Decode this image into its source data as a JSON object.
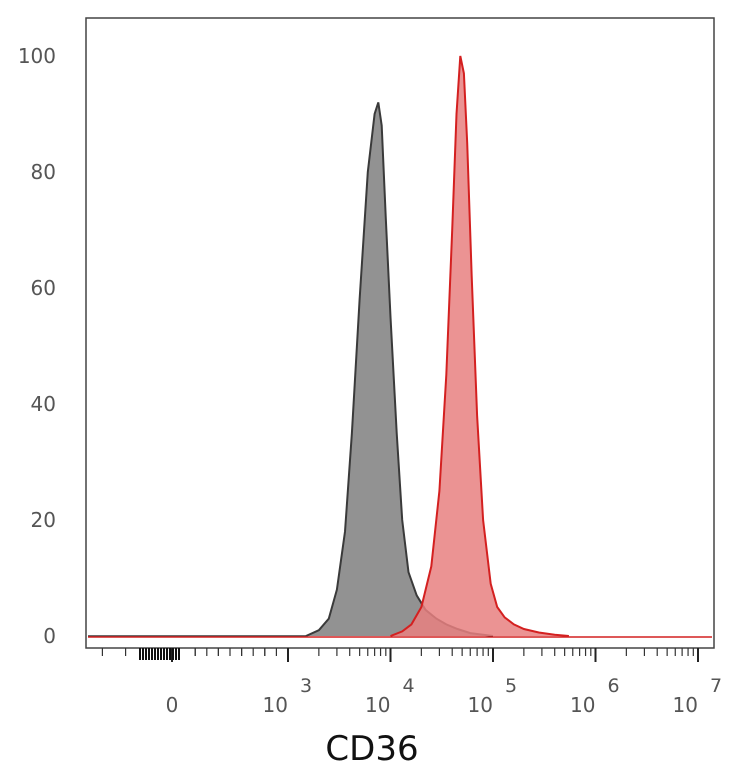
{
  "chart_data": {
    "type": "area",
    "title": "",
    "xlabel": "CD36",
    "ylabel": "",
    "ylim": [
      0,
      100
    ],
    "y_ticks": [
      "0",
      "20",
      "40",
      "60",
      "80",
      "100"
    ],
    "x_scale": "biexponential",
    "x_ticks": [
      {
        "base": "0",
        "exp": ""
      },
      {
        "base": "10",
        "exp": "3"
      },
      {
        "base": "10",
        "exp": "4"
      },
      {
        "base": "10",
        "exp": "5"
      },
      {
        "base": "10",
        "exp": "6"
      },
      {
        "base": "10",
        "exp": "7"
      }
    ],
    "grid": false,
    "legend": "none",
    "series": [
      {
        "color": "#3a3a3a",
        "fill": "#7f7f7f",
        "x": [
          1500,
          2000,
          2500,
          3000,
          3600,
          4200,
          5000,
          6000,
          7000,
          7600,
          8200,
          9000,
          10000,
          11500,
          13000,
          15000,
          18000,
          22000,
          28000,
          35000,
          45000,
          60000,
          80000,
          100000
        ],
        "y": [
          0,
          1,
          3,
          8,
          18,
          35,
          58,
          80,
          90,
          92,
          88,
          72,
          55,
          35,
          20,
          11,
          7,
          4.5,
          3,
          2,
          1.2,
          0.5,
          0.2,
          0
        ]
      },
      {
        "color": "#d42020",
        "fill": "#e88080",
        "x": [
          10000,
          13000,
          16000,
          20000,
          25000,
          30000,
          35000,
          40000,
          44000,
          48000,
          52000,
          56000,
          62000,
          70000,
          80000,
          95000,
          110000,
          130000,
          160000,
          200000,
          280000,
          400000,
          550000
        ],
        "y": [
          0,
          0.8,
          2,
          5,
          12,
          25,
          45,
          70,
          90,
          100,
          97,
          85,
          62,
          38,
          20,
          9,
          5,
          3.2,
          2,
          1.2,
          0.6,
          0.2,
          0
        ]
      }
    ]
  }
}
